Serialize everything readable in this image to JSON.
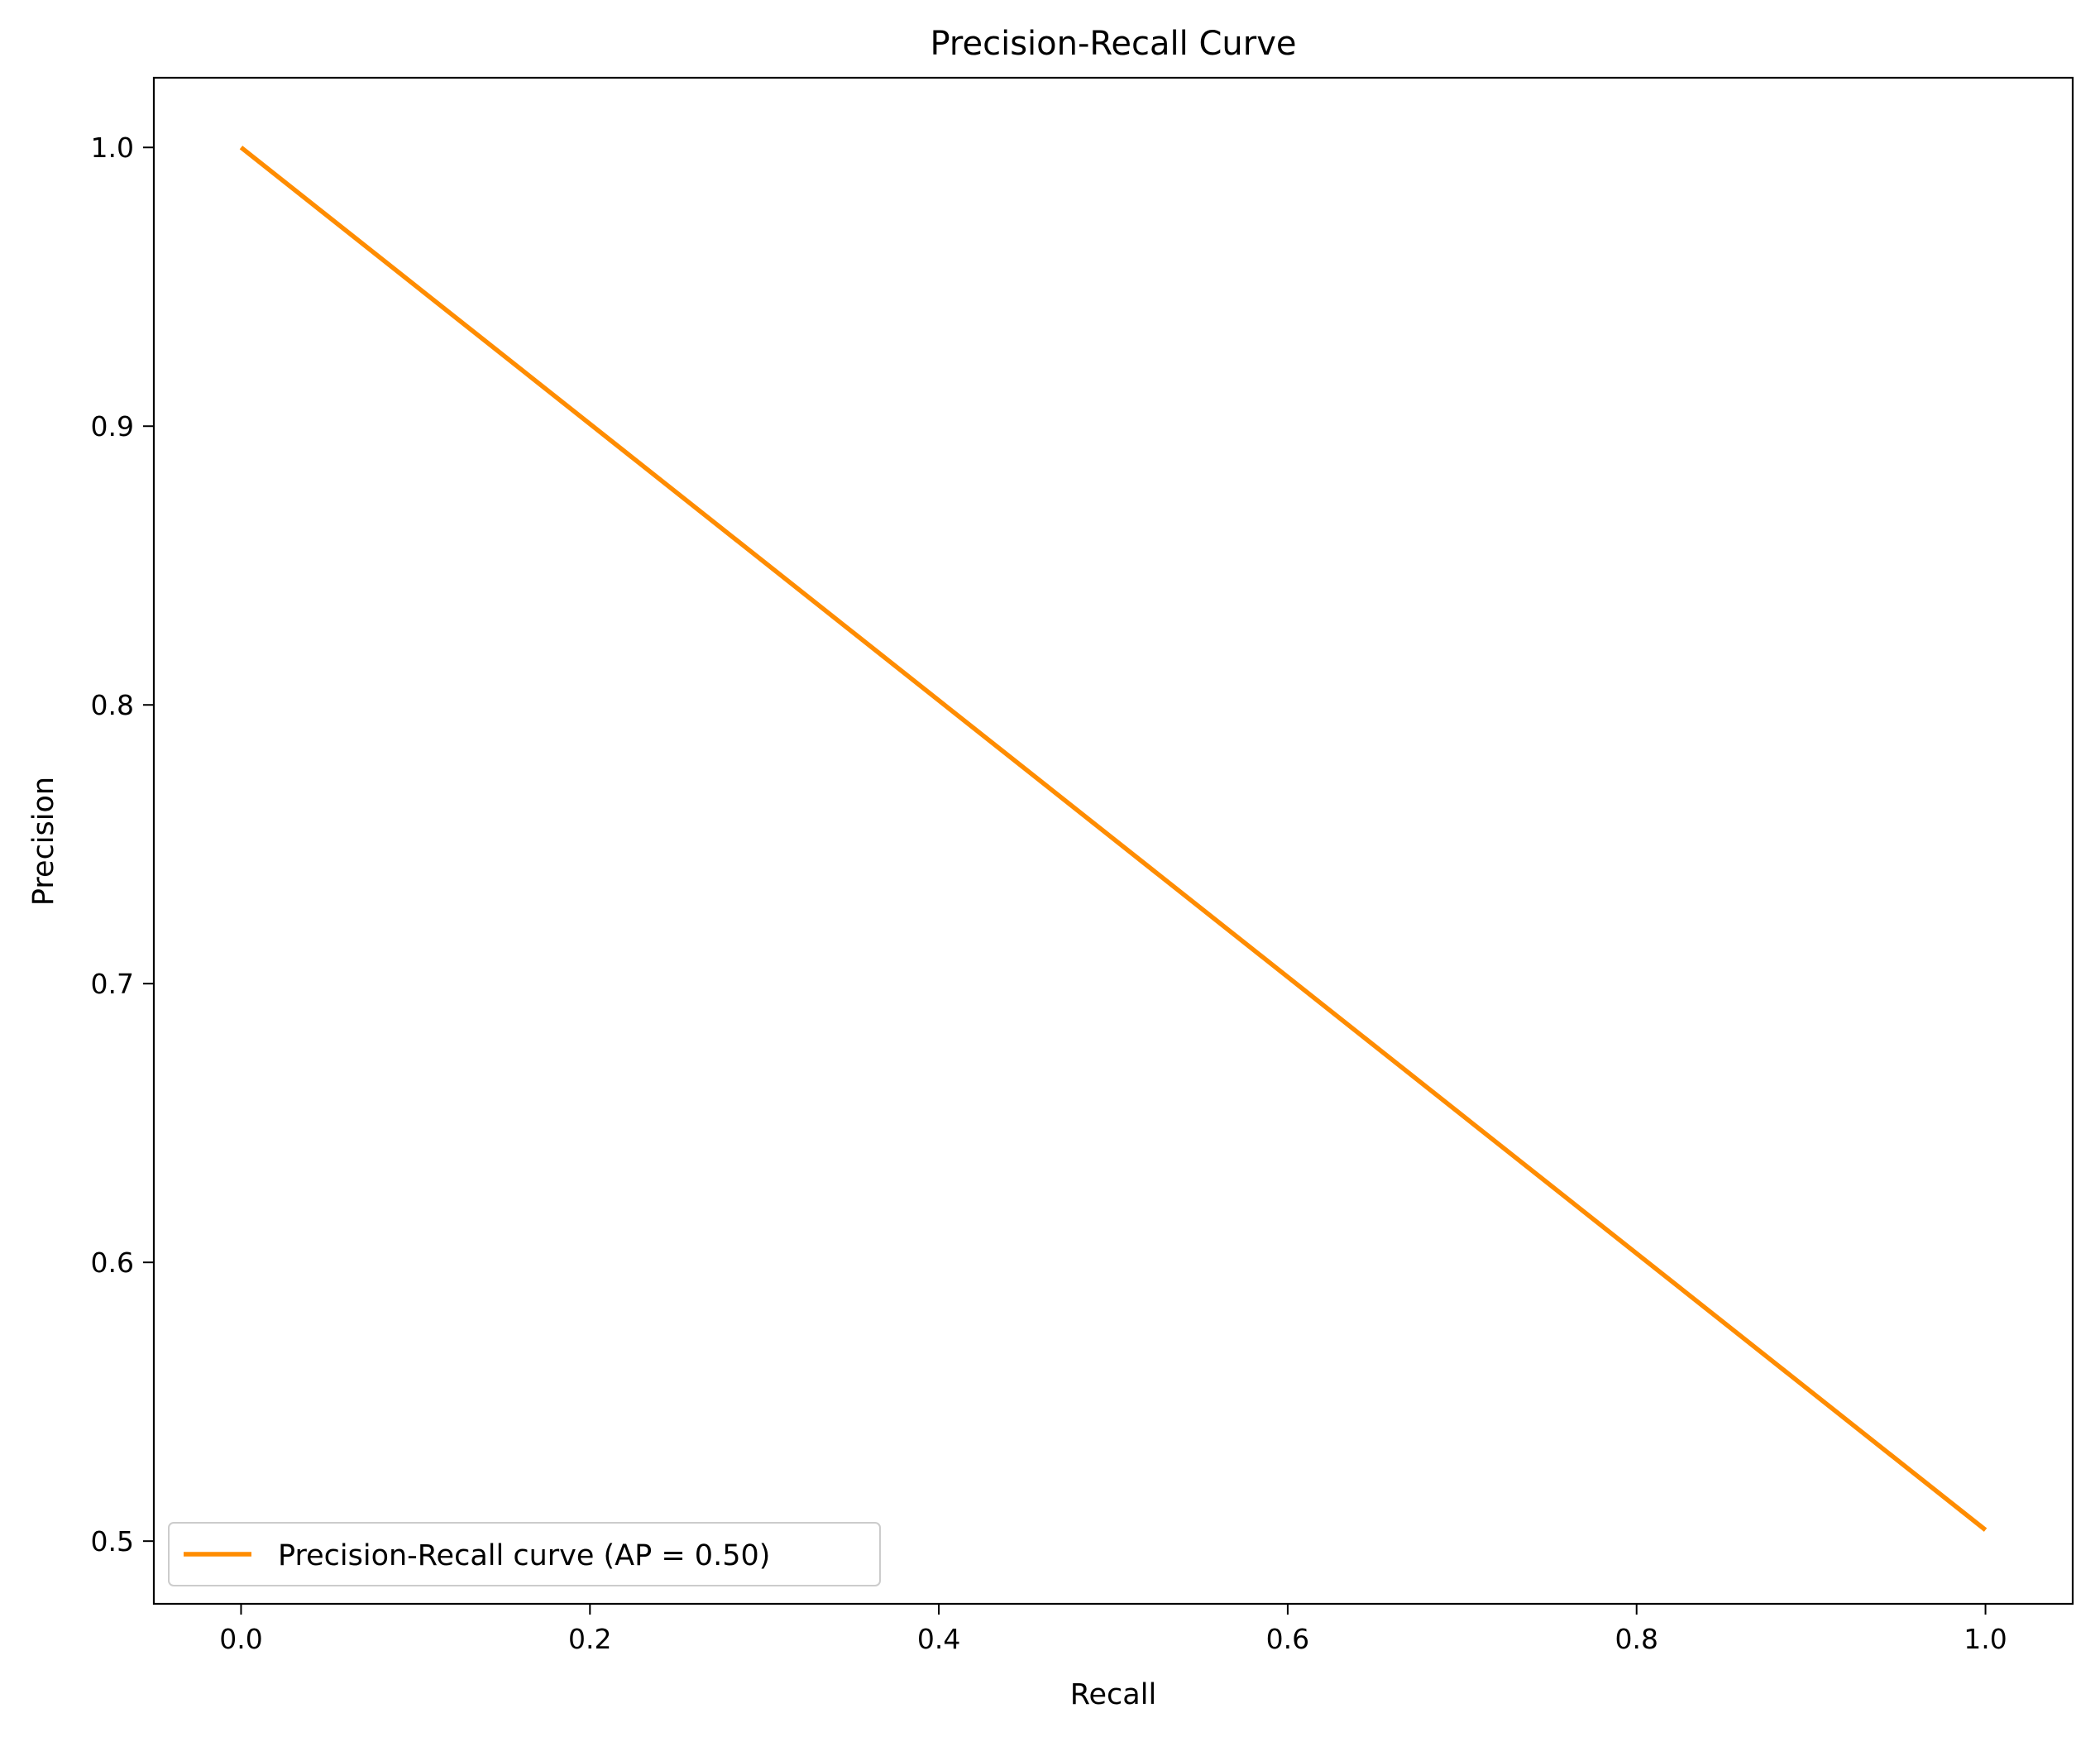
{
  "chart_data": {
    "type": "line",
    "title": "Precision-Recall Curve",
    "xlabel": "Recall",
    "ylabel": "Precision",
    "xlim": [
      -0.05,
      1.05
    ],
    "ylim": [
      0.4775,
      1.025
    ],
    "xticks": [
      0.0,
      0.2,
      0.4,
      0.6,
      0.8,
      1.0
    ],
    "xtick_labels": [
      "0.0",
      "0.2",
      "0.4",
      "0.6",
      "0.8",
      "1.0"
    ],
    "yticks": [
      0.5,
      0.6,
      0.7,
      0.8,
      0.9,
      1.0
    ],
    "ytick_labels": [
      "0.5",
      "0.6",
      "0.7",
      "0.8",
      "0.9",
      "1.0"
    ],
    "grid": false,
    "legend_position": "lower-left",
    "series": [
      {
        "name": "Precision-Recall curve (AP = 0.50)",
        "color": "#ff8c00",
        "x": [
          0.0,
          1.0
        ],
        "y": [
          1.0,
          0.504
        ]
      }
    ]
  }
}
